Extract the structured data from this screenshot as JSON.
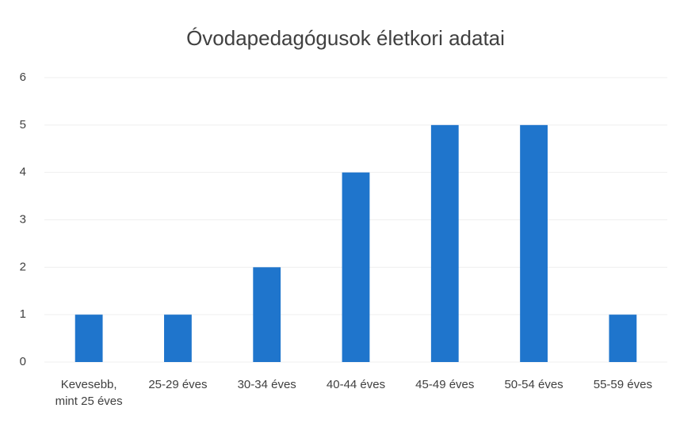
{
  "chart_data": {
    "type": "bar",
    "title": "Óvodapedagógusok életkori adatai",
    "categories": [
      "Kevesebb, mint 25 éves",
      "25-29 éves",
      "30-34 éves",
      "40-44 éves",
      "45-49 éves",
      "50-54 éves",
      "55-59 éves"
    ],
    "values": [
      1,
      1,
      2,
      4,
      5,
      5,
      1
    ],
    "color": "#1f75cc",
    "ylim": [
      0,
      6
    ],
    "yticks": [
      0,
      1,
      2,
      3,
      4,
      5,
      6
    ],
    "grid": true
  }
}
